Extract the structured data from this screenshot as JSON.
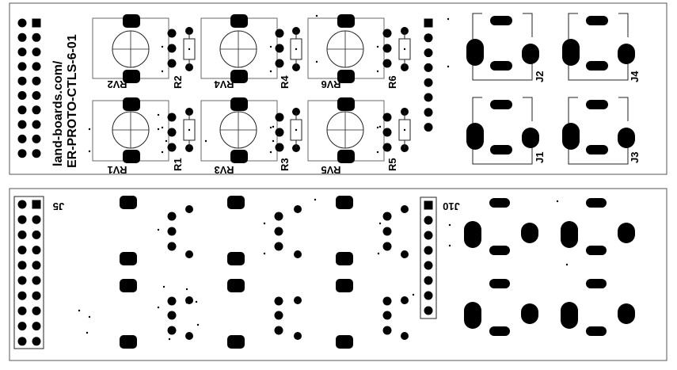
{
  "top_panel": {
    "vertical_text_line1": "land-boards.com/",
    "vertical_text_line2": "ER-PROTO-CTLS-6-01",
    "pot_labels": {
      "rv1": "RV1",
      "rv2": "RV2",
      "rv3": "RV3",
      "rv4": "RV4",
      "rv5": "RV5",
      "rv6": "RV6"
    },
    "resistor_labels": {
      "r1": "R1",
      "r2": "R2",
      "r3": "R3",
      "r4": "R4",
      "r5": "R5",
      "r6": "R6"
    },
    "jack_labels": {
      "j1": "J1",
      "j2": "J2",
      "j3": "J3",
      "j4": "J4"
    }
  },
  "bottom_panel": {
    "header_left_label": "J5",
    "header_right_label": "J10"
  }
}
